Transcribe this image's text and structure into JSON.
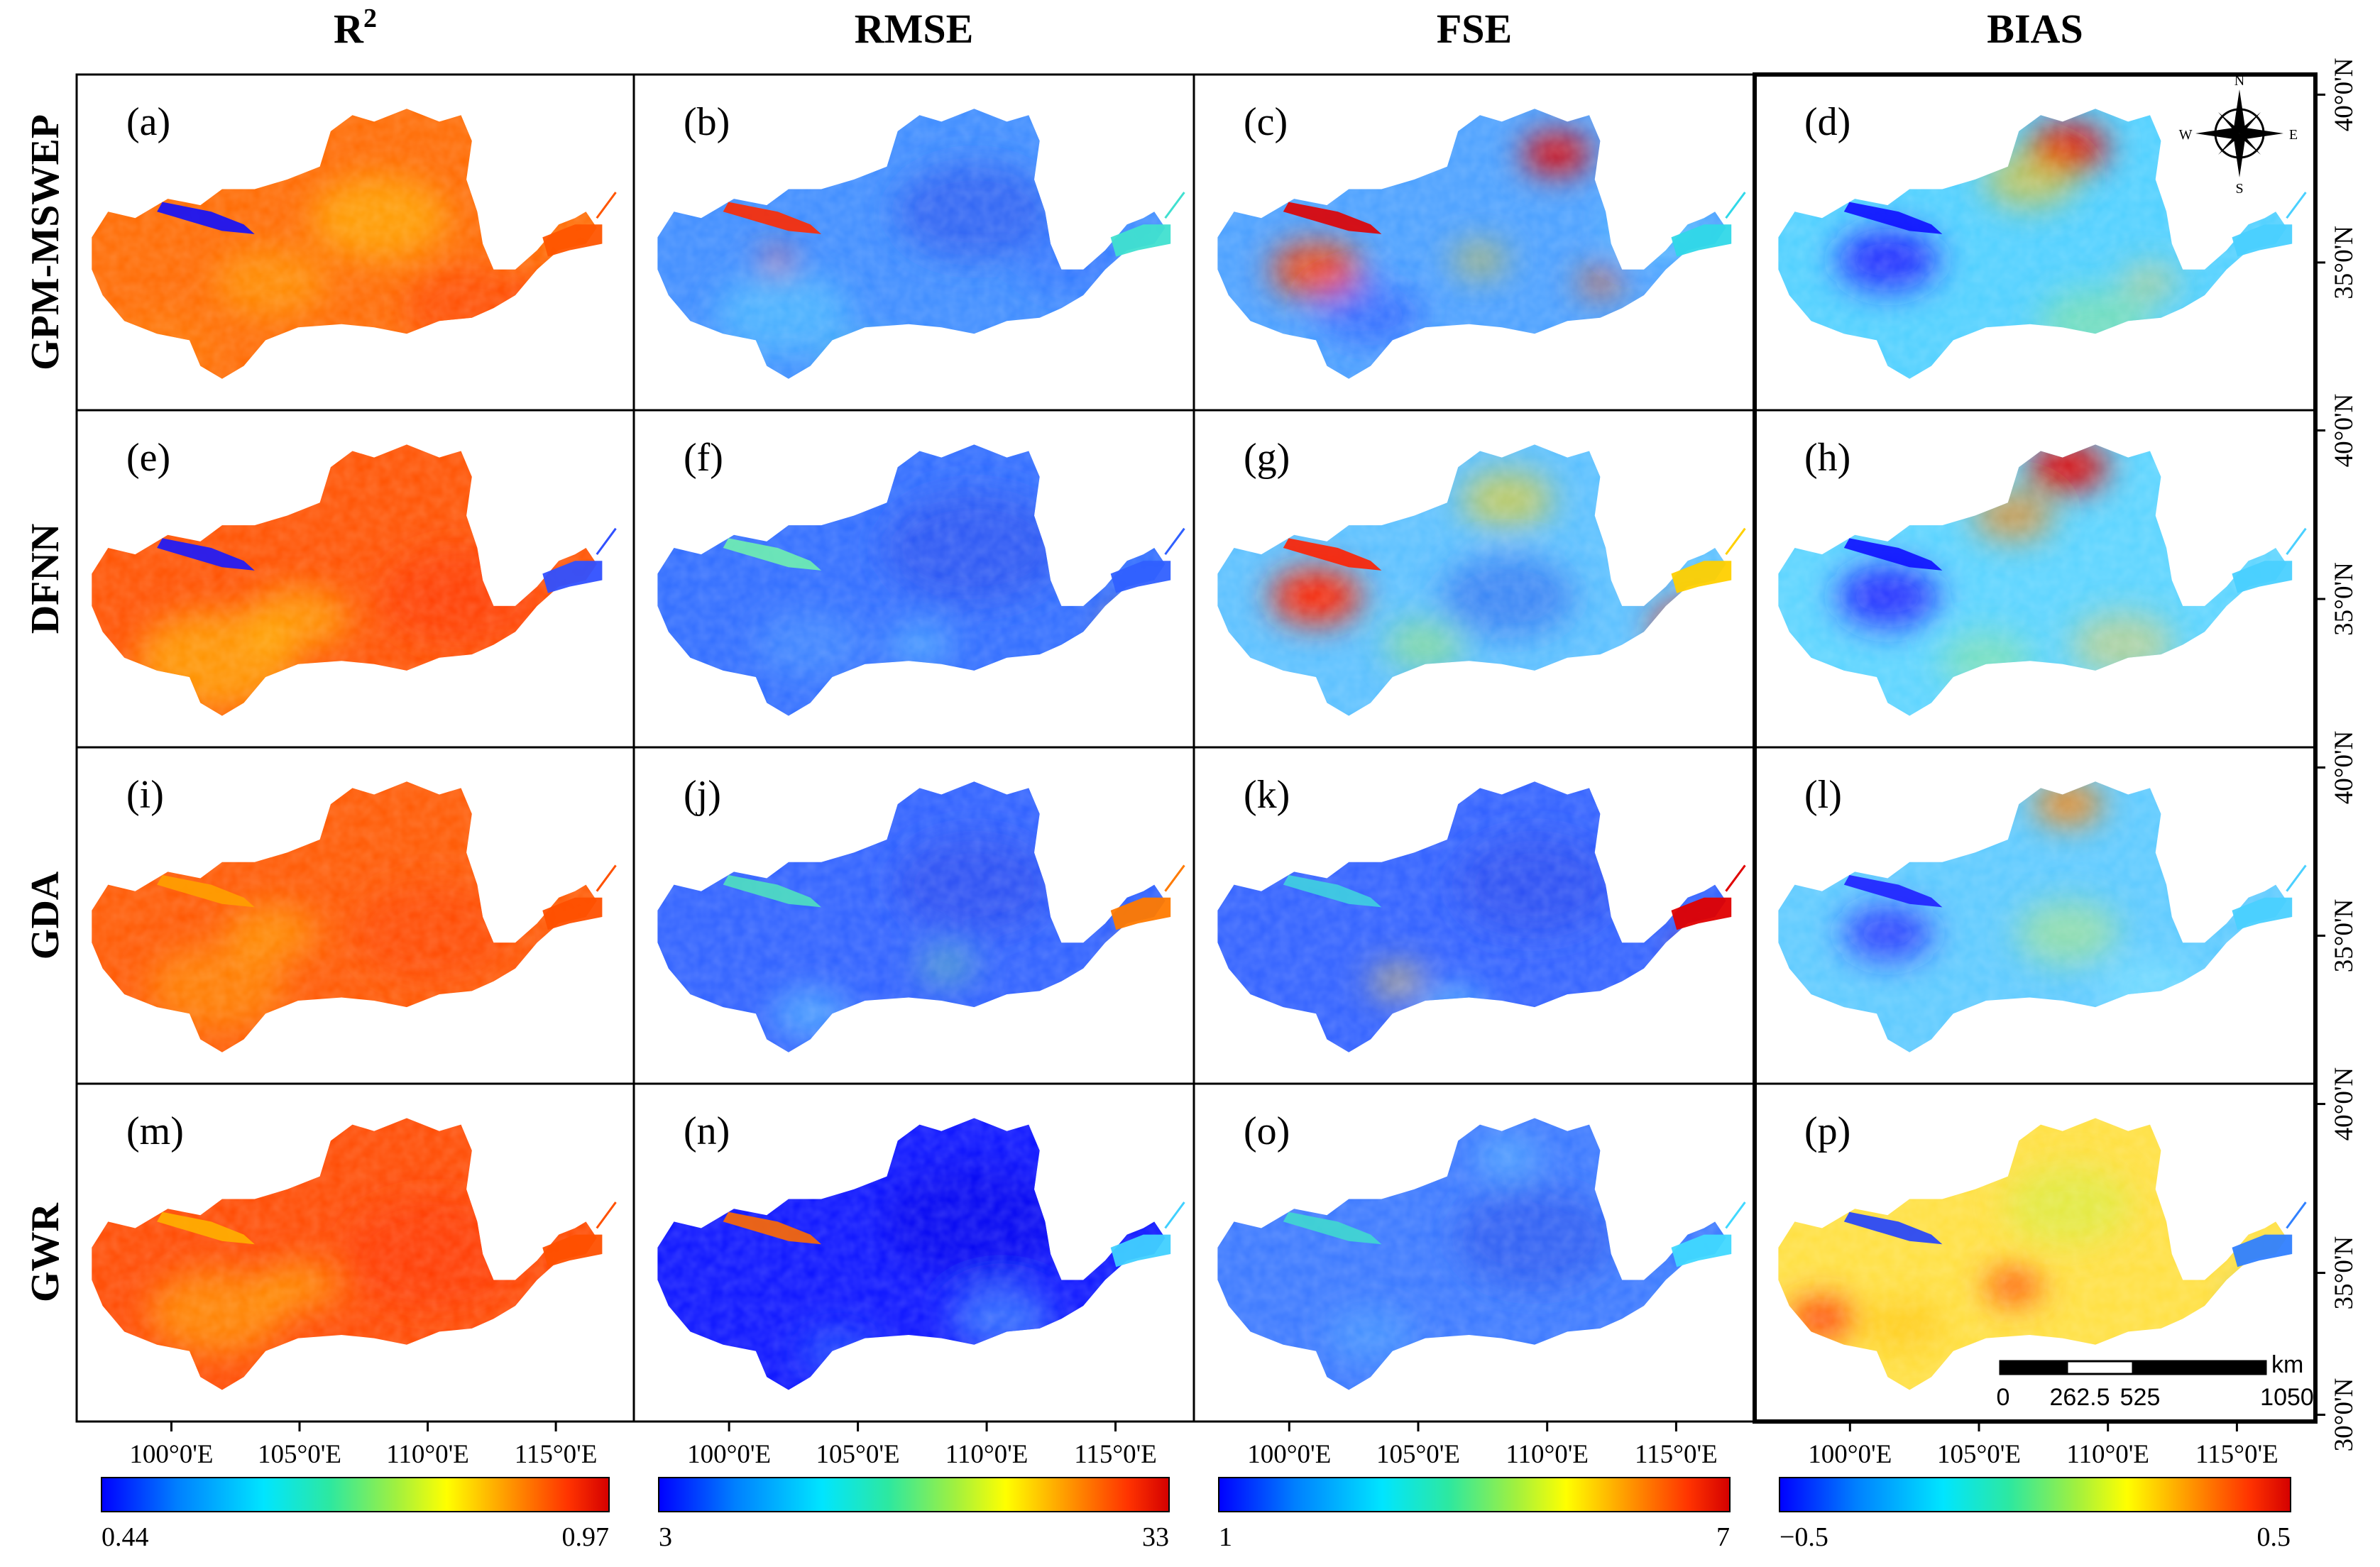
{
  "figure": {
    "columns": [
      {
        "id": "r2",
        "title": "R",
        "title_sup": "2",
        "colorbar": {
          "min": "0.44",
          "max": "0.97"
        }
      },
      {
        "id": "rmse",
        "title": "RMSE",
        "colorbar": {
          "min": "3",
          "max": "33"
        }
      },
      {
        "id": "fse",
        "title": "FSE",
        "colorbar": {
          "min": "1",
          "max": "7"
        }
      },
      {
        "id": "bias",
        "title": "BIAS",
        "colorbar": {
          "min": "−0.5",
          "max": "0.5"
        }
      }
    ],
    "rows": [
      "GPM-MSWEP",
      "DFNN",
      "GDA",
      "GWR"
    ],
    "panel_labels": [
      "(a)",
      "(b)",
      "(c)",
      "(d)",
      "(e)",
      "(f)",
      "(g)",
      "(h)",
      "(i)",
      "(j)",
      "(k)",
      "(l)",
      "(m)",
      "(n)",
      "(o)",
      "(p)"
    ],
    "longitude_ticks": [
      "100°0'E",
      "105°0'E",
      "110°0'E",
      "115°0'E"
    ],
    "latitude_ticks": [
      "40°0'N",
      "35°0'N",
      "30°0'N"
    ],
    "compass": {
      "n": "N",
      "s": "S",
      "e": "E",
      "w": "W"
    },
    "scale_bar": {
      "unit": "km",
      "labels": [
        "0",
        "262.5",
        "525",
        "1050"
      ]
    },
    "colormap": [
      "#0000ff",
      "#0080ff",
      "#00e5ff",
      "#2de8a0",
      "#a0f040",
      "#ffff00",
      "#ff9900",
      "#ff3300",
      "#d40000"
    ]
  },
  "cells": [
    {
      "base": "#ff6a00",
      "blobs": [
        [
          "#ffb000",
          0.55,
          0.42,
          60,
          0.7
        ],
        [
          "#ffa000",
          0.35,
          0.62,
          50,
          0.6
        ],
        [
          "#ff3d00",
          0.72,
          0.7,
          60,
          0.6
        ],
        [
          "#ff8000",
          0.15,
          0.82,
          50,
          0.5
        ],
        [
          "#ff2a00",
          0.88,
          0.7,
          40,
          0.7
        ]
      ],
      "stripe": "#1010ff",
      "head": "#ff5500"
    },
    {
      "base": "#3d8cff",
      "blobs": [
        [
          "#2a55f0",
          0.6,
          0.4,
          70,
          0.7
        ],
        [
          "#50c8ff",
          0.25,
          0.72,
          60,
          0.6
        ],
        [
          "#35e0d0",
          0.4,
          0.88,
          35,
          0.5
        ],
        [
          "#2e6cff",
          0.78,
          0.55,
          50,
          0.6
        ],
        [
          "#ff4020",
          0.24,
          0.55,
          14,
          0.9
        ]
      ],
      "stripe": "#ff2a00",
      "head": "#40e0d0"
    },
    {
      "base": "#4aa0ff",
      "blobs": [
        [
          "#e00000",
          0.64,
          0.22,
          30,
          1.0
        ],
        [
          "#ff4000",
          0.2,
          0.58,
          40,
          0.9
        ],
        [
          "#ffcc00",
          0.5,
          0.55,
          25,
          0.5
        ],
        [
          "#2a50ff",
          0.3,
          0.72,
          45,
          0.6
        ],
        [
          "#ff5000",
          0.72,
          0.62,
          20,
          0.7
        ],
        [
          "#60e0ff",
          0.82,
          0.45,
          40,
          0.5
        ]
      ],
      "stripe": "#e00000",
      "head": "#30d8e8"
    },
    {
      "base": "#4fd0ff",
      "blobs": [
        [
          "#e00000",
          0.55,
          0.2,
          35,
          1.0
        ],
        [
          "#ffc000",
          0.48,
          0.3,
          40,
          0.6
        ],
        [
          "#2020ff",
          0.22,
          0.55,
          45,
          0.9
        ],
        [
          "#a0f060",
          0.6,
          0.75,
          50,
          0.4
        ],
        [
          "#ffd040",
          0.7,
          0.62,
          25,
          0.5
        ]
      ],
      "stripe": "#1010ff",
      "head": "#4ad0ff"
    },
    {
      "base": "#ff5200",
      "blobs": [
        [
          "#ffb000",
          0.25,
          0.75,
          70,
          0.7
        ],
        [
          "#ffd000",
          0.4,
          0.62,
          45,
          0.5
        ],
        [
          "#ff3000",
          0.7,
          0.55,
          70,
          0.6
        ],
        [
          "#ff3a00",
          0.9,
          0.7,
          40,
          0.8
        ]
      ],
      "stripe": "#1818ff",
      "head": "#3050ff"
    },
    {
      "base": "#2f6cff",
      "blobs": [
        [
          "#2850f0",
          0.6,
          0.4,
          80,
          0.7
        ],
        [
          "#4a9cff",
          0.3,
          0.7,
          50,
          0.5
        ],
        [
          "#ff8000",
          0.9,
          0.65,
          25,
          0.9
        ],
        [
          "#60d0ff",
          0.5,
          0.7,
          30,
          0.5
        ]
      ],
      "stripe": "#70f0b0",
      "head": "#3060ff"
    },
    {
      "base": "#5ac0ff",
      "blobs": [
        [
          "#ff2000",
          0.2,
          0.55,
          40,
          1.0
        ],
        [
          "#ffd000",
          0.55,
          0.25,
          40,
          0.6
        ],
        [
          "#2a60f0",
          0.55,
          0.55,
          60,
          0.6
        ],
        [
          "#ff2a00",
          0.9,
          0.65,
          40,
          0.9
        ],
        [
          "#a0f050",
          0.4,
          0.7,
          35,
          0.5
        ]
      ],
      "stripe": "#ff2000",
      "head": "#ffd000"
    },
    {
      "base": "#5ad4ff",
      "blobs": [
        [
          "#e00000",
          0.55,
          0.15,
          35,
          1.0
        ],
        [
          "#ff8000",
          0.45,
          0.3,
          35,
          0.7
        ],
        [
          "#2020ff",
          0.22,
          0.55,
          45,
          0.9
        ],
        [
          "#ffd040",
          0.65,
          0.7,
          45,
          0.5
        ],
        [
          "#a0f060",
          0.4,
          0.75,
          40,
          0.4
        ]
      ],
      "stripe": "#1010ff",
      "head": "#4ad0ff"
    },
    {
      "base": "#ff5800",
      "blobs": [
        [
          "#ff9500",
          0.25,
          0.72,
          60,
          0.6
        ],
        [
          "#ff4000",
          0.65,
          0.55,
          70,
          0.6
        ],
        [
          "#ffb800",
          0.35,
          0.55,
          40,
          0.5
        ],
        [
          "#ff2000",
          0.9,
          0.7,
          35,
          0.8
        ]
      ],
      "stripe": "#ffa000",
      "head": "#ff5000"
    },
    {
      "base": "#2e60ff",
      "blobs": [
        [
          "#2848ef",
          0.6,
          0.4,
          70,
          0.7
        ],
        [
          "#5ac8ff",
          0.3,
          0.8,
          35,
          0.6
        ],
        [
          "#f08000",
          0.92,
          0.62,
          20,
          0.9
        ],
        [
          "#70e0a0",
          0.55,
          0.65,
          25,
          0.5
        ]
      ],
      "stripe": "#50e0c0",
      "head": "#ff7a00"
    },
    {
      "base": "#3060ff",
      "blobs": [
        [
          "#2848ef",
          0.6,
          0.4,
          70,
          0.7
        ],
        [
          "#ffd040",
          0.35,
          0.7,
          25,
          0.6
        ],
        [
          "#e00000",
          0.92,
          0.62,
          25,
          1.0
        ],
        [
          "#5ad0ff",
          0.45,
          0.78,
          30,
          0.6
        ]
      ],
      "stripe": "#40d0e0",
      "head": "#e00000"
    },
    {
      "base": "#5ccaff",
      "blobs": [
        [
          "#ff8000",
          0.55,
          0.15,
          30,
          0.9
        ],
        [
          "#2020ff",
          0.22,
          0.55,
          40,
          0.8
        ],
        [
          "#c0f060",
          0.55,
          0.55,
          45,
          0.5
        ],
        [
          "#80e8ff",
          0.7,
          0.72,
          45,
          0.5
        ]
      ],
      "stripe": "#2020ff",
      "head": "#4ad0ff"
    },
    {
      "base": "#ff4a00",
      "blobs": [
        [
          "#ff9a00",
          0.25,
          0.68,
          60,
          0.7
        ],
        [
          "#ff3000",
          0.65,
          0.5,
          80,
          0.6
        ],
        [
          "#ffc000",
          0.4,
          0.6,
          35,
          0.5
        ],
        [
          "#ff3a00",
          0.9,
          0.68,
          35,
          0.8
        ]
      ],
      "stripe": "#ffb000",
      "head": "#ff5000"
    },
    {
      "base": "#0a12ff",
      "blobs": [
        [
          "#0000ee",
          0.6,
          0.4,
          80,
          0.8
        ],
        [
          "#4aa0ff",
          0.65,
          0.7,
          45,
          0.6
        ],
        [
          "#2a70ff",
          0.35,
          0.8,
          35,
          0.5
        ],
        [
          "#40d0ff",
          0.9,
          0.65,
          20,
          0.8
        ]
      ],
      "stripe": "#ff6a00",
      "head": "#40d0ff"
    },
    {
      "base": "#3a78ff",
      "blobs": [
        [
          "#2a55f0",
          0.6,
          0.45,
          70,
          0.7
        ],
        [
          "#60c8ff",
          0.55,
          0.2,
          30,
          0.5
        ],
        [
          "#4aa8ff",
          0.3,
          0.75,
          40,
          0.5
        ],
        [
          "#40d8ff",
          0.9,
          0.65,
          20,
          0.8
        ]
      ],
      "stripe": "#40d8d0",
      "head": "#40d8ff"
    },
    {
      "base": "#ffe040",
      "blobs": [
        [
          "#ff4000",
          0.45,
          0.6,
          25,
          0.9
        ],
        [
          "#d0f040",
          0.55,
          0.35,
          55,
          0.6
        ],
        [
          "#ff3000",
          0.1,
          0.7,
          30,
          0.9
        ],
        [
          "#2060ff",
          0.8,
          0.3,
          10,
          1.0
        ],
        [
          "#3080ff",
          0.9,
          0.65,
          20,
          0.9
        ],
        [
          "#ffc000",
          0.25,
          0.72,
          35,
          0.6
        ]
      ],
      "stripe": "#2040ff",
      "head": "#3080ff"
    }
  ]
}
